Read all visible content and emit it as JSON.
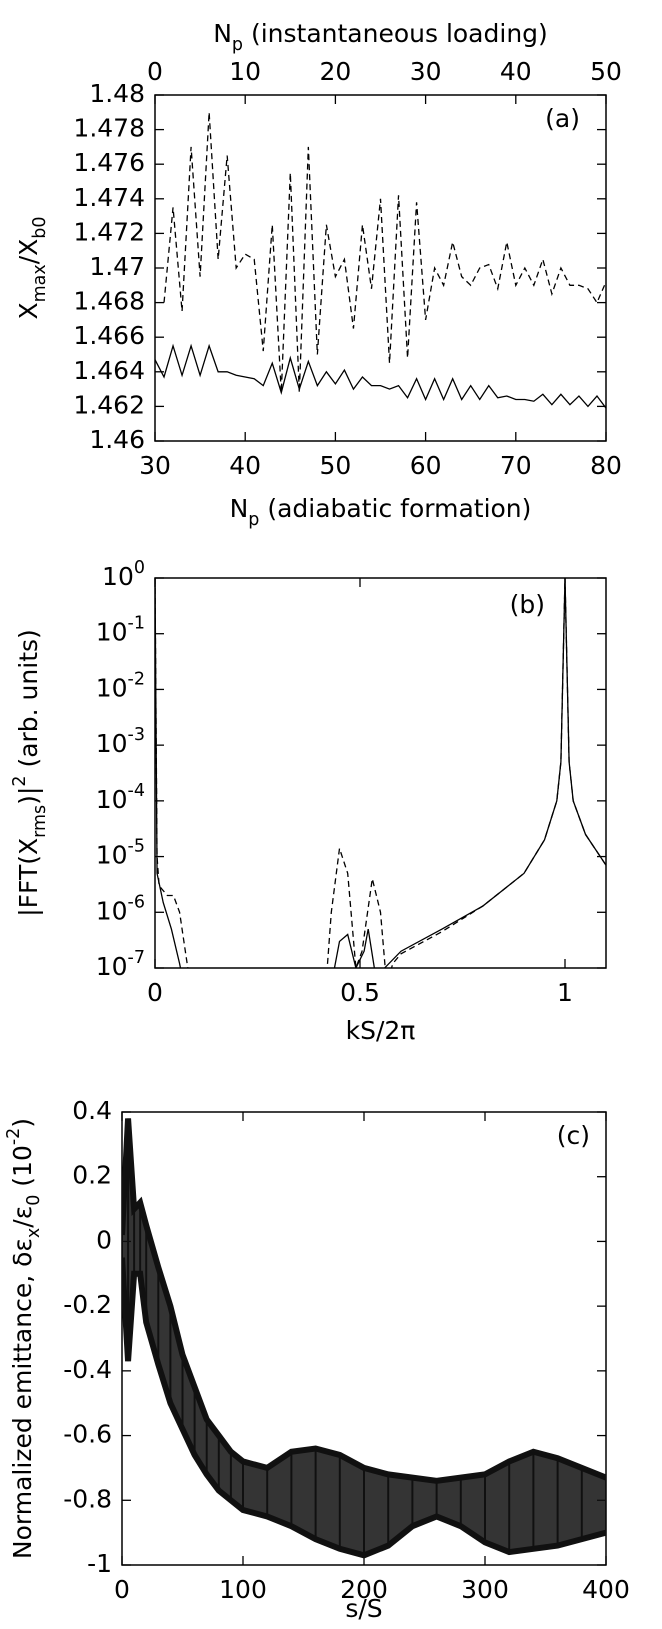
{
  "chart_data": [
    {
      "type": "line",
      "panel_label": "(a)",
      "x2_label": [
        "N",
        {
          "text": "p",
          "shift": "sub"
        },
        " (instantaneous loading)"
      ],
      "x_label": [
        "N",
        {
          "text": "p",
          "shift": "sub"
        },
        " (adiabatic formation)"
      ],
      "y_label": [
        "X",
        {
          "text": "max",
          "shift": "sub"
        },
        "/X",
        {
          "text": "b0",
          "shift": "sub"
        }
      ],
      "xlim": [
        30,
        80
      ],
      "xticks": [
        30,
        40,
        50,
        60,
        70,
        80
      ],
      "x2lim": [
        0,
        50
      ],
      "x2ticks": [
        0,
        10,
        20,
        30,
        40,
        50
      ],
      "ylim": [
        1.46,
        1.48
      ],
      "yticks": [
        1.46,
        1.462,
        1.464,
        1.466,
        1.468,
        1.47,
        1.472,
        1.474,
        1.476,
        1.478,
        1.48
      ],
      "series": [
        {
          "axis": "x2",
          "line_style": "dashed",
          "color": "#000000",
          "x": [
            1,
            2,
            3,
            4,
            5,
            6,
            7,
            8,
            9,
            10,
            11,
            12,
            13,
            14,
            15,
            16,
            17,
            18,
            19,
            20,
            21,
            22,
            23,
            24,
            25,
            26,
            27,
            28,
            29,
            30,
            31,
            32,
            33,
            34,
            35,
            36,
            37,
            38,
            39,
            40,
            41,
            42,
            43,
            44,
            45,
            46,
            47,
            48,
            49,
            50
          ],
          "values": [
            1.468,
            1.4735,
            1.4675,
            1.477,
            1.4695,
            1.479,
            1.4705,
            1.4765,
            1.47,
            1.4708,
            1.4705,
            1.4652,
            1.4725,
            1.4628,
            1.4755,
            1.4628,
            1.477,
            1.465,
            1.4725,
            1.4695,
            1.4705,
            1.4665,
            1.4725,
            1.4688,
            1.474,
            1.4645,
            1.4742,
            1.4648,
            1.4738,
            1.467,
            1.47,
            1.469,
            1.4715,
            1.4695,
            1.469,
            1.47,
            1.4702,
            1.4688,
            1.4715,
            1.469,
            1.47,
            1.469,
            1.4705,
            1.4685,
            1.47,
            1.469,
            1.469,
            1.4688,
            1.468,
            1.4692
          ]
        },
        {
          "line_style": "solid",
          "color": "#000000",
          "x": [
            30,
            31,
            32,
            33,
            34,
            35,
            36,
            37,
            38,
            39,
            40,
            41,
            42,
            43,
            44,
            45,
            46,
            47,
            48,
            49,
            50,
            51,
            52,
            53,
            54,
            55,
            56,
            57,
            58,
            59,
            60,
            61,
            62,
            63,
            64,
            65,
            66,
            67,
            68,
            69,
            70,
            71,
            72,
            73,
            74,
            75,
            76,
            77,
            78,
            79,
            80
          ],
          "values": [
            1.4647,
            1.4637,
            1.4655,
            1.4638,
            1.4655,
            1.4638,
            1.4655,
            1.464,
            1.464,
            1.4638,
            1.4637,
            1.4636,
            1.4632,
            1.4645,
            1.4628,
            1.4648,
            1.463,
            1.4646,
            1.4632,
            1.464,
            1.4633,
            1.4641,
            1.463,
            1.4637,
            1.4632,
            1.4632,
            1.463,
            1.4632,
            1.4625,
            1.4636,
            1.4624,
            1.4636,
            1.4624,
            1.4636,
            1.4624,
            1.4632,
            1.4624,
            1.4632,
            1.4625,
            1.4626,
            1.4624,
            1.4624,
            1.4623,
            1.4627,
            1.4621,
            1.4627,
            1.4621,
            1.4626,
            1.462,
            1.4626,
            1.4619
          ]
        }
      ]
    },
    {
      "type": "line",
      "panel_label": "(b)",
      "log_y": true,
      "x_label": [
        "kS/2π"
      ],
      "y_label": [
        "|FFT(X",
        {
          "text": "rms",
          "shift": "sub"
        },
        ")|",
        {
          "text": "2",
          "shift": "super"
        },
        " (arb. units)"
      ],
      "xlim": [
        0,
        1.1
      ],
      "xticks": [
        0,
        0.5,
        1
      ],
      "ylim": [
        1e-07,
        1
      ],
      "yticks": [
        {
          "value": 1e-07,
          "label": [
            "10",
            {
              "text": "-7",
              "shift": "super"
            }
          ]
        },
        {
          "value": 1e-06,
          "label": [
            "10",
            {
              "text": "-6",
              "shift": "super"
            }
          ]
        },
        {
          "value": 1e-05,
          "label": [
            "10",
            {
              "text": "-5",
              "shift": "super"
            }
          ]
        },
        {
          "value": 0.0001,
          "label": [
            "10",
            {
              "text": "-4",
              "shift": "super"
            }
          ]
        },
        {
          "value": 0.001,
          "label": [
            "10",
            {
              "text": "-3",
              "shift": "super"
            }
          ]
        },
        {
          "value": 0.01,
          "label": [
            "10",
            {
              "text": "-2",
              "shift": "super"
            }
          ]
        },
        {
          "value": 0.1,
          "label": [
            "10",
            {
              "text": "-1",
              "shift": "super"
            }
          ]
        },
        {
          "value": 1,
          "label": [
            "10",
            {
              "text": "0",
              "shift": "super"
            }
          ]
        }
      ],
      "series": [
        {
          "line_style": "dashed",
          "color": "#000000",
          "x": [
            0,
            0.005,
            0.01,
            0.03,
            0.045,
            0.06,
            0.08,
            0.09,
            null,
            0.41,
            0.43,
            0.45,
            0.47,
            0.49,
            0.505,
            0.53,
            0.55,
            0.565,
            0.58,
            0.6,
            0.7,
            0.8,
            0.9,
            0.95,
            0.98,
            0.99,
            1,
            1.01,
            1.02,
            1.05,
            1.1
          ],
          "values": [
            1,
            1e-05,
            3e-06,
            2e-06,
            2e-06,
            1e-06,
            1e-07,
            3e-08,
            null,
            1e-08,
            1e-06,
            1.4e-05,
            5e-06,
            1e-07,
            2e-07,
            4e-06,
            1e-06,
            5e-08,
            1.2e-07,
            1.8e-07,
            4.5e-07,
            1.3e-06,
            5e-06,
            2e-05,
            0.0001,
            0.0005,
            1,
            0.0005,
            0.0001,
            2.5e-05,
            7e-06
          ]
        },
        {
          "line_style": "solid",
          "color": "#000000",
          "x": [
            0,
            0.005,
            0.02,
            0.04,
            0.06,
            0.07,
            null,
            0.43,
            0.45,
            0.47,
            0.49,
            0.51,
            0.52,
            0.535,
            0.55,
            0.56,
            0.6,
            0.7,
            0.8,
            0.9,
            0.95,
            0.98,
            0.99,
            1,
            1.01,
            1.02,
            1.05,
            1.1
          ],
          "values": [
            1,
            5e-06,
            1.5e-06,
            5e-07,
            1.2e-07,
            5e-08,
            null,
            5e-08,
            3e-07,
            4e-07,
            1e-07,
            2e-07,
            5e-07,
            1e-07,
            3e-08,
            1e-07,
            2e-07,
            5e-07,
            1.3e-06,
            5e-06,
            2e-05,
            0.0001,
            0.0005,
            1,
            0.0005,
            0.0001,
            2.5e-05,
            7e-06
          ]
        }
      ]
    },
    {
      "type": "band",
      "panel_label": "(c)",
      "x_label": [
        "s/S"
      ],
      "y_label": [
        "Normalized emittance, δε",
        {
          "text": "x",
          "shift": "sub"
        },
        "/ε",
        {
          "text": "0",
          "shift": "sub"
        },
        " (10",
        {
          "text": "-2",
          "shift": "super"
        },
        ")"
      ],
      "xlim": [
        0,
        400
      ],
      "xticks": [
        0,
        100,
        200,
        300,
        400
      ],
      "ylim": [
        -1,
        0.4
      ],
      "yticks": [
        -1,
        -0.8,
        -0.6,
        -0.4,
        -0.2,
        0,
        0.2,
        0.4
      ],
      "x": [
        0,
        5,
        10,
        15,
        20,
        30,
        40,
        50,
        60,
        70,
        80,
        90,
        100,
        120,
        140,
        160,
        180,
        200,
        220,
        240,
        260,
        280,
        300,
        320,
        340,
        360,
        380,
        400
      ],
      "series": [
        {
          "color": "#111111",
          "values": [
            0.02,
            0.38,
            0.1,
            0.12,
            0.05,
            -0.08,
            -0.2,
            -0.35,
            -0.45,
            -0.55,
            -0.6,
            -0.65,
            -0.68,
            -0.7,
            -0.65,
            -0.64,
            -0.66,
            -0.7,
            -0.72,
            -0.73,
            -0.74,
            -0.73,
            -0.72,
            -0.68,
            -0.65,
            -0.67,
            -0.7,
            -0.73
          ]
        },
        {
          "color": "#111111",
          "values": [
            -0.05,
            -0.37,
            -0.1,
            -0.1,
            -0.25,
            -0.38,
            -0.5,
            -0.58,
            -0.66,
            -0.72,
            -0.77,
            -0.8,
            -0.83,
            -0.85,
            -0.88,
            -0.92,
            -0.95,
            -0.97,
            -0.94,
            -0.88,
            -0.85,
            -0.88,
            -0.93,
            -0.96,
            -0.95,
            -0.94,
            -0.92,
            -0.9
          ]
        }
      ]
    }
  ]
}
